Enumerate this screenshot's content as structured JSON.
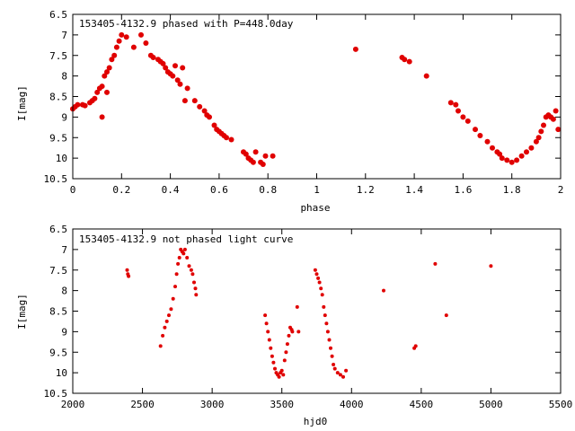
{
  "colors": {
    "marker": "#e00000",
    "axis": "#000000",
    "background": "#ffffff"
  },
  "chart_data": [
    {
      "type": "scatter",
      "title": "153405-4132.9 phased with P=448.0day",
      "xlabel": "phase",
      "ylabel": "I[mag]",
      "xlim": [
        0,
        2
      ],
      "ylim": [
        6.5,
        10.5
      ],
      "y_inverted": true,
      "grid": false,
      "x_ticks": [
        "0",
        "0.2",
        "0.4",
        "0.6",
        "0.8",
        "1",
        "1.2",
        "1.4",
        "1.6",
        "1.8",
        "2"
      ],
      "y_ticks": [
        "6.5",
        "7",
        "7.5",
        "8",
        "8.5",
        "9",
        "9.5",
        "10",
        "10.5"
      ],
      "series": [
        {
          "x": [
            0.0,
            0.01,
            0.02,
            0.04,
            0.05,
            0.07,
            0.08,
            0.09,
            0.1,
            0.11,
            0.12,
            0.12,
            0.13,
            0.14,
            0.14,
            0.15,
            0.16,
            0.17,
            0.18,
            0.19,
            0.2,
            0.22,
            0.25,
            0.28,
            0.3,
            0.32,
            0.33,
            0.35,
            0.36,
            0.37,
            0.38,
            0.39,
            0.4,
            0.41,
            0.42,
            0.43,
            0.44,
            0.45,
            0.46,
            0.47,
            0.5,
            0.52,
            0.54,
            0.55,
            0.56,
            0.58,
            0.59,
            0.6,
            0.61,
            0.62,
            0.63,
            0.65,
            0.7,
            0.71,
            0.72,
            0.73,
            0.74,
            0.75,
            0.77,
            0.78,
            0.79,
            0.82,
            1.16,
            1.35,
            1.36,
            1.38,
            1.45,
            1.55,
            1.57,
            1.58,
            1.6,
            1.62,
            1.65,
            1.67,
            1.7,
            1.72,
            1.74,
            1.75,
            1.76,
            1.78,
            1.8,
            1.82,
            1.84,
            1.86,
            1.88,
            1.9,
            1.91,
            1.92,
            1.93,
            1.94,
            1.95,
            1.96,
            1.97,
            1.98,
            1.99
          ],
          "y": [
            8.8,
            8.75,
            8.7,
            8.7,
            8.72,
            8.65,
            8.6,
            8.55,
            8.4,
            8.3,
            9.0,
            8.25,
            8.0,
            7.9,
            8.4,
            7.8,
            7.6,
            7.5,
            7.3,
            7.15,
            7.0,
            7.05,
            7.3,
            7.0,
            7.2,
            7.5,
            7.55,
            7.6,
            7.65,
            7.7,
            7.8,
            7.9,
            7.95,
            8.0,
            7.75,
            8.1,
            8.2,
            7.8,
            8.6,
            8.3,
            8.6,
            8.75,
            8.85,
            8.95,
            9.0,
            9.2,
            9.3,
            9.35,
            9.4,
            9.45,
            9.5,
            9.55,
            9.85,
            9.9,
            10.0,
            10.05,
            10.1,
            9.85,
            10.1,
            10.15,
            9.95,
            9.95,
            7.35,
            7.55,
            7.6,
            7.65,
            8.0,
            8.65,
            8.7,
            8.85,
            9.0,
            9.1,
            9.3,
            9.45,
            9.6,
            9.75,
            9.85,
            9.9,
            10.0,
            10.05,
            10.1,
            10.05,
            9.95,
            9.85,
            9.75,
            9.6,
            9.5,
            9.35,
            9.2,
            9.0,
            8.95,
            9.0,
            9.05,
            8.85,
            9.3
          ]
        }
      ]
    },
    {
      "type": "scatter",
      "title": "153405-4132.9 not phased light curve",
      "xlabel": "hjd0",
      "ylabel": "I[mag]",
      "xlim": [
        2000,
        5500
      ],
      "ylim": [
        6.5,
        10.5
      ],
      "y_inverted": true,
      "grid": false,
      "x_ticks": [
        "2000",
        "2500",
        "3000",
        "3500",
        "4000",
        "4500",
        "5000",
        "5500"
      ],
      "y_ticks": [
        "6.5",
        "7",
        "7.5",
        "8",
        "8.5",
        "9",
        "9.5",
        "10",
        "10.5"
      ],
      "series": [
        {
          "x": [
            2390,
            2395,
            2400,
            2630,
            2645,
            2660,
            2675,
            2690,
            2705,
            2720,
            2735,
            2745,
            2755,
            2765,
            2775,
            2785,
            2795,
            2805,
            2820,
            2835,
            2850,
            2860,
            2870,
            2880,
            2885,
            3380,
            3390,
            3400,
            3410,
            3420,
            3430,
            3440,
            3450,
            3460,
            3470,
            3480,
            3490,
            3500,
            3510,
            3520,
            3530,
            3540,
            3550,
            3560,
            3570,
            3575,
            3610,
            3620,
            3740,
            3750,
            3760,
            3770,
            3780,
            3790,
            3800,
            3810,
            3820,
            3830,
            3840,
            3850,
            3860,
            3870,
            3880,
            3900,
            3920,
            3940,
            3960,
            4230,
            4450,
            4460,
            4600,
            4680,
            5000
          ],
          "y": [
            7.5,
            7.6,
            7.65,
            9.35,
            9.1,
            8.9,
            8.75,
            8.6,
            8.45,
            8.2,
            7.9,
            7.6,
            7.35,
            7.2,
            7.0,
            7.05,
            7.1,
            7.0,
            7.2,
            7.4,
            7.5,
            7.6,
            7.8,
            7.95,
            8.1,
            8.6,
            8.8,
            9.0,
            9.2,
            9.4,
            9.6,
            9.75,
            9.9,
            10.0,
            10.05,
            10.1,
            10.0,
            9.95,
            10.05,
            9.7,
            9.5,
            9.3,
            9.1,
            8.9,
            8.95,
            9.0,
            8.4,
            9.0,
            7.5,
            7.6,
            7.7,
            7.8,
            7.95,
            8.1,
            8.4,
            8.6,
            8.8,
            9.0,
            9.2,
            9.4,
            9.6,
            9.8,
            9.9,
            10.0,
            10.05,
            10.1,
            9.95,
            8.0,
            9.4,
            9.35,
            7.35,
            8.6,
            7.4
          ]
        }
      ]
    }
  ]
}
